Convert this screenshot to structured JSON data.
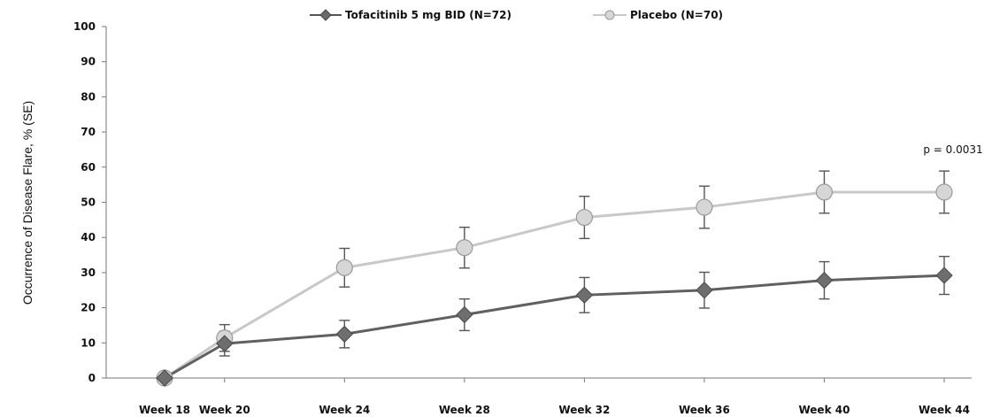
{
  "chart_data": {
    "type": "line",
    "title": "",
    "xlabel": "",
    "ylabel": "Occurrence of Disease Flare, % (SE)",
    "ylim": [
      0,
      100
    ],
    "yticks": [
      "0",
      "10",
      "20",
      "30",
      "40",
      "50",
      "60",
      "70",
      "80",
      "90",
      "100"
    ],
    "categories": [
      "Week 18",
      "Week 20",
      "Week 24",
      "Week 28",
      "Week 32",
      "Week 36",
      "Week 40",
      "Week 44"
    ],
    "x_weeks": [
      18,
      20,
      24,
      28,
      32,
      36,
      40,
      44
    ],
    "grid": false,
    "legend_position": "top-center",
    "series": [
      {
        "name": "Tofacitinib 5 mg BID (N=72)",
        "marker": "diamond",
        "color": "#606060",
        "values": [
          0,
          9.8,
          12.5,
          18,
          23.6,
          25,
          27.8,
          29.2
        ],
        "error": [
          0,
          3.5,
          3.9,
          4.5,
          5.0,
          5.1,
          5.3,
          5.4
        ]
      },
      {
        "name": "Placebo (N=70)",
        "marker": "circle",
        "color": "#c8c8c8",
        "values": [
          0,
          11.4,
          31.4,
          37.1,
          45.7,
          48.6,
          52.9,
          52.9
        ],
        "error": [
          0,
          3.8,
          5.5,
          5.8,
          6.0,
          6.0,
          6.0,
          6.0
        ]
      }
    ],
    "annotations": [
      {
        "text": "p = 0.0031",
        "x": "Week 44",
        "y": 65
      }
    ]
  }
}
